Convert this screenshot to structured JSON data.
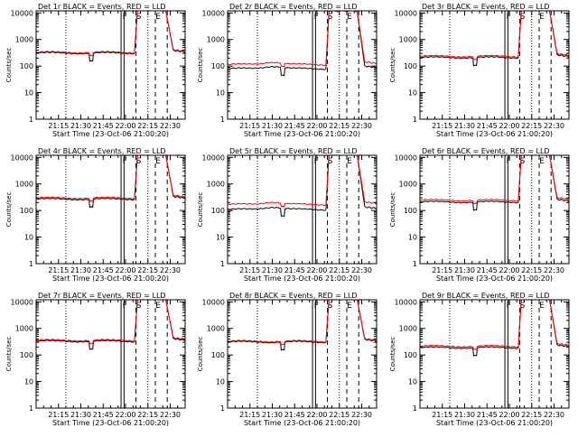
{
  "chart_data": {
    "type": "line",
    "x_axis_label": "Start Time (23-Oct-06 21:00:20)",
    "y_axis_label": "Counts/sec",
    "x_tick_labels": [
      "21:15",
      "21:30",
      "21:45",
      "22:00",
      "22:15",
      "22:30"
    ],
    "x_ticks_minutes_after_2100": [
      15,
      30,
      45,
      60,
      75,
      90
    ],
    "x_range_minutes_after_2100": [
      0,
      100
    ],
    "y_scale": "log",
    "y_range": [
      1,
      12000
    ],
    "y_tick_labels": [
      "1",
      "10",
      "100",
      "1000",
      "10000"
    ],
    "y_tick_values": [
      1,
      10,
      100,
      1000,
      10000
    ],
    "series_colors": {
      "events": "#000000",
      "lld": "#ff0000"
    },
    "marker_lines_minutes": {
      "dotted": [
        20,
        75
      ],
      "solid": [
        57,
        59
      ],
      "dashed": [
        67,
        80,
        88
      ]
    },
    "marker_letters": {
      "solid_pair": "F",
      "dashed_1": "S",
      "dashed_2": "E"
    },
    "panels": [
      {
        "title": "Det 1r BLACK = Events, RED = LLD",
        "baseline_events": 310,
        "baseline_lld": 330,
        "peak_lld": 10000,
        "flare_rise": 80
      },
      {
        "title": "Det 2r BLACK = Events, RED = LLD",
        "baseline_events": 80,
        "baseline_lld": 115,
        "peak_lld": 9000,
        "flare_rise": 80
      },
      {
        "title": "Det 3r BLACK = Events, RED = LLD",
        "baseline_events": 210,
        "baseline_lld": 235,
        "peak_lld": 10000,
        "flare_rise": 75
      },
      {
        "title": "Det 4r BLACK = Events, RED = LLD",
        "baseline_events": 270,
        "baseline_lld": 300,
        "peak_lld": 10000,
        "flare_rise": 85
      },
      {
        "title": "Det 5r BLACK = Events, RED = LLD",
        "baseline_events": 110,
        "baseline_lld": 170,
        "peak_lld": 10000,
        "flare_rise": 80
      },
      {
        "title": "Det 6r BLACK = Events, RED = LLD",
        "baseline_events": 210,
        "baseline_lld": 245,
        "peak_lld": 10000,
        "flare_rise": 75
      },
      {
        "title": "Det 7r BLACK = Events, RED = LLD",
        "baseline_events": 330,
        "baseline_lld": 360,
        "peak_lld": 10000,
        "flare_rise": 85
      },
      {
        "title": "Det 8r BLACK = Events, RED = LLD",
        "baseline_events": 310,
        "baseline_lld": 330,
        "peak_lld": 10000,
        "flare_rise": 80
      },
      {
        "title": "Det 9r BLACK = Events, RED = LLD",
        "baseline_events": 190,
        "baseline_lld": 215,
        "peak_lld": 10000,
        "flare_rise": 75
      }
    ]
  }
}
